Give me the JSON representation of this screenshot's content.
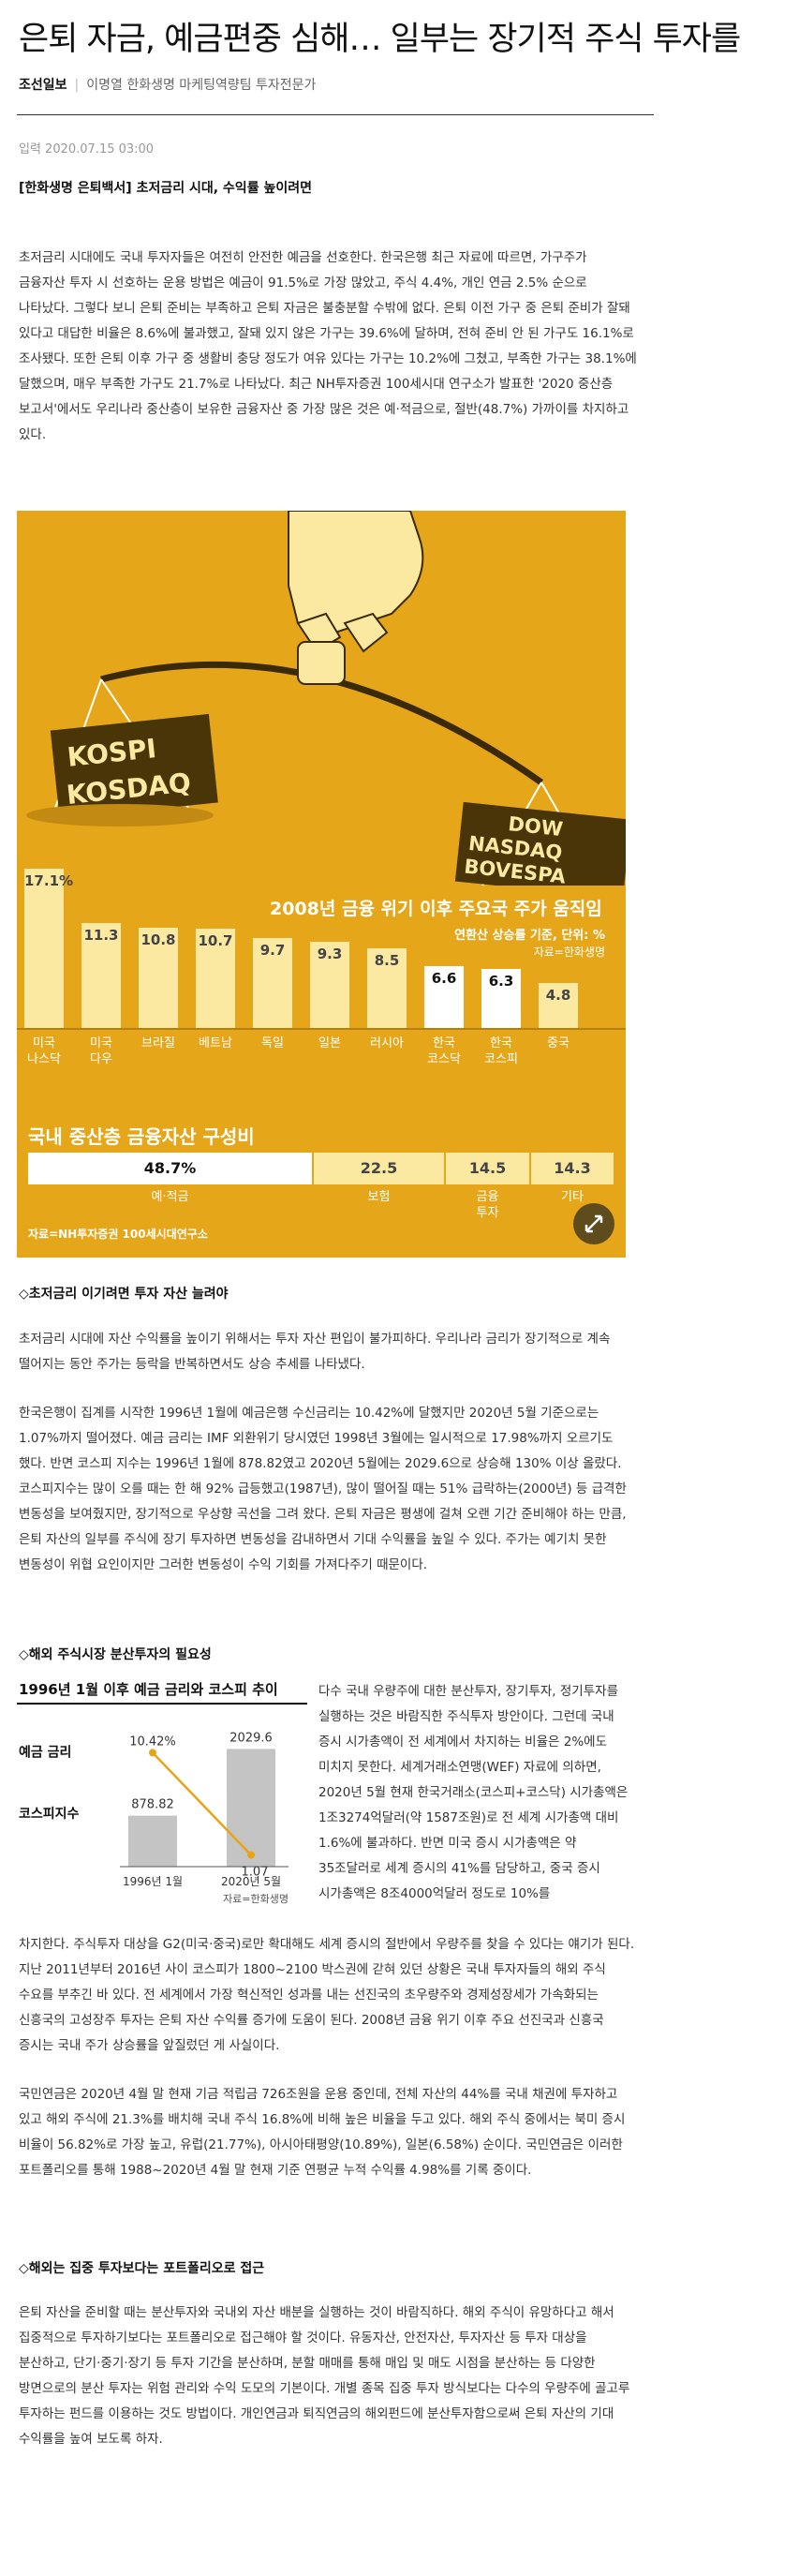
{
  "article": {
    "headline": "은퇴 자금, 예금편중 심해… 일부는 장기적 주식 투자를",
    "paper": "조선일보",
    "author": "이명열 한화생명 마케팅역량팀 투자전문가",
    "date": "입력 2020.07.15 03:00",
    "kicker": "[한화생명 은퇴백서] 초저금리 시대, 수익률 높이려면",
    "p1": "초저금리 시대에도 국내 투자자들은 여전히 안전한 예금을 선호한다. 한국은행 최근 자료에 따르면, 가구주가 금융자산 투자 시 선호하는 운용 방법은 예금이 91.5%로 가장 많았고, 주식 4.4%, 개인 연금 2.5% 순으로 나타났다. 그렇다 보니 은퇴 준비는 부족하고 은퇴 자금은 불충분할 수밖에 없다. 은퇴 이전 가구 중 은퇴 준비가 잘돼 있다고 대답한 비율은 8.6%에 불과했고, 잘돼 있지 않은 가구는 39.6%에 달하며, 전혀 준비 안 된 가구도 16.1%로 조사됐다. 또한 은퇴 이후 가구 중 생활비 충당 정도가 여유 있다는 가구는 10.2%에 그쳤고, 부족한 가구는 38.1%에 달했으며, 매우 부족한 가구도 21.7%로 나타났다. 최근 NH투자증권 100세시대 연구소가 발표한 '2020 중산층 보고서'에서도 우리나라 중산층이 보유한 금융자산 중 가장 많은 것은 예·적금으로, 절반(48.7%) 가까이를 차지하고 있다.",
    "s1": "◇초저금리 이기려면 투자 자산 늘려야",
    "p2": "초저금리 시대에 자산 수익률을 높이기 위해서는 투자 자산 편입이 불가피하다. 우리나라 금리가 장기적으로 계속 떨어지는 동안 주가는 등락을 반복하면서도 상승 추세를 나타냈다.",
    "p3": "한국은행이 집계를 시작한 1996년 1월에 예금은행 수신금리는 10.42%에 달했지만 2020년 5월 기준으로는 1.07%까지 떨어졌다. 예금 금리는 IMF 외환위기 당시였던 1998년 3월에는 일시적으로 17.98%까지 오르기도 했다. 반면 코스피 지수는 1996년 1월에 878.82였고 2020년 5월에는 2029.6으로 상승해 130% 이상 올랐다. 코스피지수는 많이 오를 때는 한 해 92% 급등했고(1987년), 많이 떨어질 때는 51% 급락하는(2000년) 등 급격한 변동성을 보여줬지만, 장기적으로 우상향 곡선을 그려 왔다. 은퇴 자금은 평생에 걸쳐 오랜 기간 준비해야 하는 만큼, 은퇴 자산의 일부를 주식에 장기 투자하면 변동성을 감내하면서 기대 수익률을 높일 수 있다. 주가는 예기치 못한 변동성이 위협 요인이지만 그러한 변동성이 수익 기회를 가져다주기 때문이다.",
    "s2": "◇해외 주식시장 분산투자의 필요성",
    "p4": "다수 국내 우량주에 대한 분산투자, 장기투자, 정기투자를 실행하는 것은 바람직한 주식투자 방안이다. 그런데 국내 증시 시가총액이 전 세계에서 차지하는 비율은 2%에도 미치지 못한다. 세계거래소연맹(WEF) 자료에 의하면, 2020년 5월 현재 한국거래소(코스피+코스닥) 시가총액은 1조3274억달러(약 1587조원)로 전 세계 시가총액 대비 1.6%에 불과하다. 반면 미국 증시 시가총액은 약 35조달러로 세계 증시의 41%를 담당하고, 중국 증시 시가총액은 8조4000억달러 정도로 10%를",
    "p4b": "차지한다. 주식투자 대상을 G2(미국·중국)로만 확대해도 세계 증시의 절반에서 우량주를 찾을 수 있다는 얘기가 된다. 지난 2011년부터 2016년 사이 코스피가 1800~2100 박스권에 갇혀 있던 상황은 국내 투자자들의 해외 주식 수요를 부추긴 바 있다. 전 세계에서 가장 혁신적인 성과를 내는 선진국의 초우량주와 경제성장세가 가속화되는 신흥국의 고성장주 투자는 은퇴 자산 수익률 증가에 도움이 된다. 2008년 금융 위기 이후 주요 선진국과 신흥국 증시는 국내 주가 상승률을 앞질렀던 게 사실이다.",
    "p5": "국민연금은 2020년 4월 말 현재 기금 적립금 726조원을 운용 중인데, 전체 자산의 44%를 국내 채권에 투자하고 있고 해외 주식에 21.3%를 배치해 국내 주식 16.8%에 비해 높은 비율을 두고 있다. 해외 주식 중에서는 북미 증시 비율이 56.82%로 가장 높고, 유럽(21.77%), 아시아태평양(10.89%), 일본(6.58%) 순이다. 국민연금은 이러한 포트폴리오를 통해 1988~2020년 4월 말 현재 기준 연평균 누적 수익률 4.98%를 기록 중이다.",
    "s3": "◇해외는 집중 투자보다는 포트폴리오로 접근",
    "p6": "은퇴 자산을 준비할 때는 분산투자와 국내외 자산 배분을 실행하는 것이 바람직하다. 해외 주식이 유망하다고 해서 집중적으로 투자하기보다는 포트폴리오로 접근해야 할 것이다. 유동자산, 안전자산, 투자자산 등 투자 대상을 분산하고, 단기·중기·장기 등 투자 기간을 분산하며, 분할 매매를 통해 매입 및 매도 시점을 분산하는 등 다양한 방면으로의 분산 투자는 위험 관리와 수익 도모의 기본이다. 개별 종목 집중 투자 방식보다는 다수의 우량주에 골고루 투자하는 펀드를 이용하는 것도 방법이다. 개인연금과 퇴직연금의 해외펀드에 분산투자함으로써 은퇴 자산의 기대 수익률을 높여 보도록 하자."
  },
  "graphic": {
    "title": "2008년 금융 위기 이후 주요국 주가 움직임",
    "subtitle": "연환산 상승률 기준, 단위: %",
    "source": "자료=한화생명",
    "left_pan": [
      "KOSPI",
      "KOSDAQ"
    ],
    "right_pan": [
      "DOW",
      "NASDAQ",
      "BOVESPA"
    ],
    "bar_color": "#fbe9a2",
    "highlight_color": "#ffffff",
    "chart_data": {
      "type": "bar",
      "categories": [
        "미국 나스닥",
        "미국 다우",
        "브라질",
        "베트남",
        "독일",
        "일본",
        "러시아",
        "한국 코스닥",
        "한국 코스피",
        "중국"
      ],
      "values": [
        17.1,
        11.3,
        10.8,
        10.7,
        9.7,
        9.3,
        8.5,
        6.6,
        6.3,
        4.8
      ],
      "highlight": [
        "한국 코스닥",
        "한국 코스피"
      ]
    },
    "labels": [
      "17.1%",
      "11.3",
      "10.8",
      "10.7",
      "9.7",
      "9.3",
      "8.5",
      "6.6",
      "6.3",
      "4.8"
    ],
    "cat_lines": [
      [
        "미국",
        "나스닥"
      ],
      [
        "미국",
        "다우"
      ],
      [
        "브라질",
        ""
      ],
      [
        "베트남",
        ""
      ],
      [
        "독일",
        ""
      ],
      [
        "일본",
        ""
      ],
      [
        "러시아",
        ""
      ],
      [
        "한국",
        "코스닥"
      ],
      [
        "한국",
        "코스피"
      ],
      [
        "중국",
        ""
      ]
    ],
    "assets": {
      "title": "국내 중산층 금융자산 구성비",
      "chart_data": {
        "type": "bar",
        "categories": [
          "예·적금",
          "보험",
          "금융투자",
          "기타"
        ],
        "values": [
          48.7,
          22.5,
          14.5,
          14.3
        ]
      },
      "value_labels": [
        "48.7%",
        "22.5",
        "14.5",
        "14.3"
      ],
      "cat_lines": [
        [
          "예·적금",
          ""
        ],
        [
          "보험",
          ""
        ],
        [
          "금융",
          "투자"
        ],
        [
          "기타",
          ""
        ]
      ],
      "source": "자료=NH투자증권 100세시대연구소"
    }
  },
  "chart2": {
    "title": "1996년 1월 이후 예금 금리와 코스피 추이",
    "series_labels": [
      "예금 금리",
      "코스피지수"
    ],
    "source": "자료=한화생명",
    "chart_data": {
      "type": "bar",
      "categories": [
        "1996년 1월",
        "2020년 5월"
      ],
      "series": [
        {
          "name": "예금 금리",
          "values": [
            10.42,
            1.07
          ]
        },
        {
          "name": "코스피지수",
          "values": [
            878.82,
            2029.6
          ]
        }
      ]
    },
    "rate_labels": [
      "10.42%",
      "1.07"
    ],
    "kospi_labels": [
      "878.82",
      "2029.6"
    ],
    "rate_color": "#e8a317",
    "bar_color": "#c4c4c4"
  }
}
